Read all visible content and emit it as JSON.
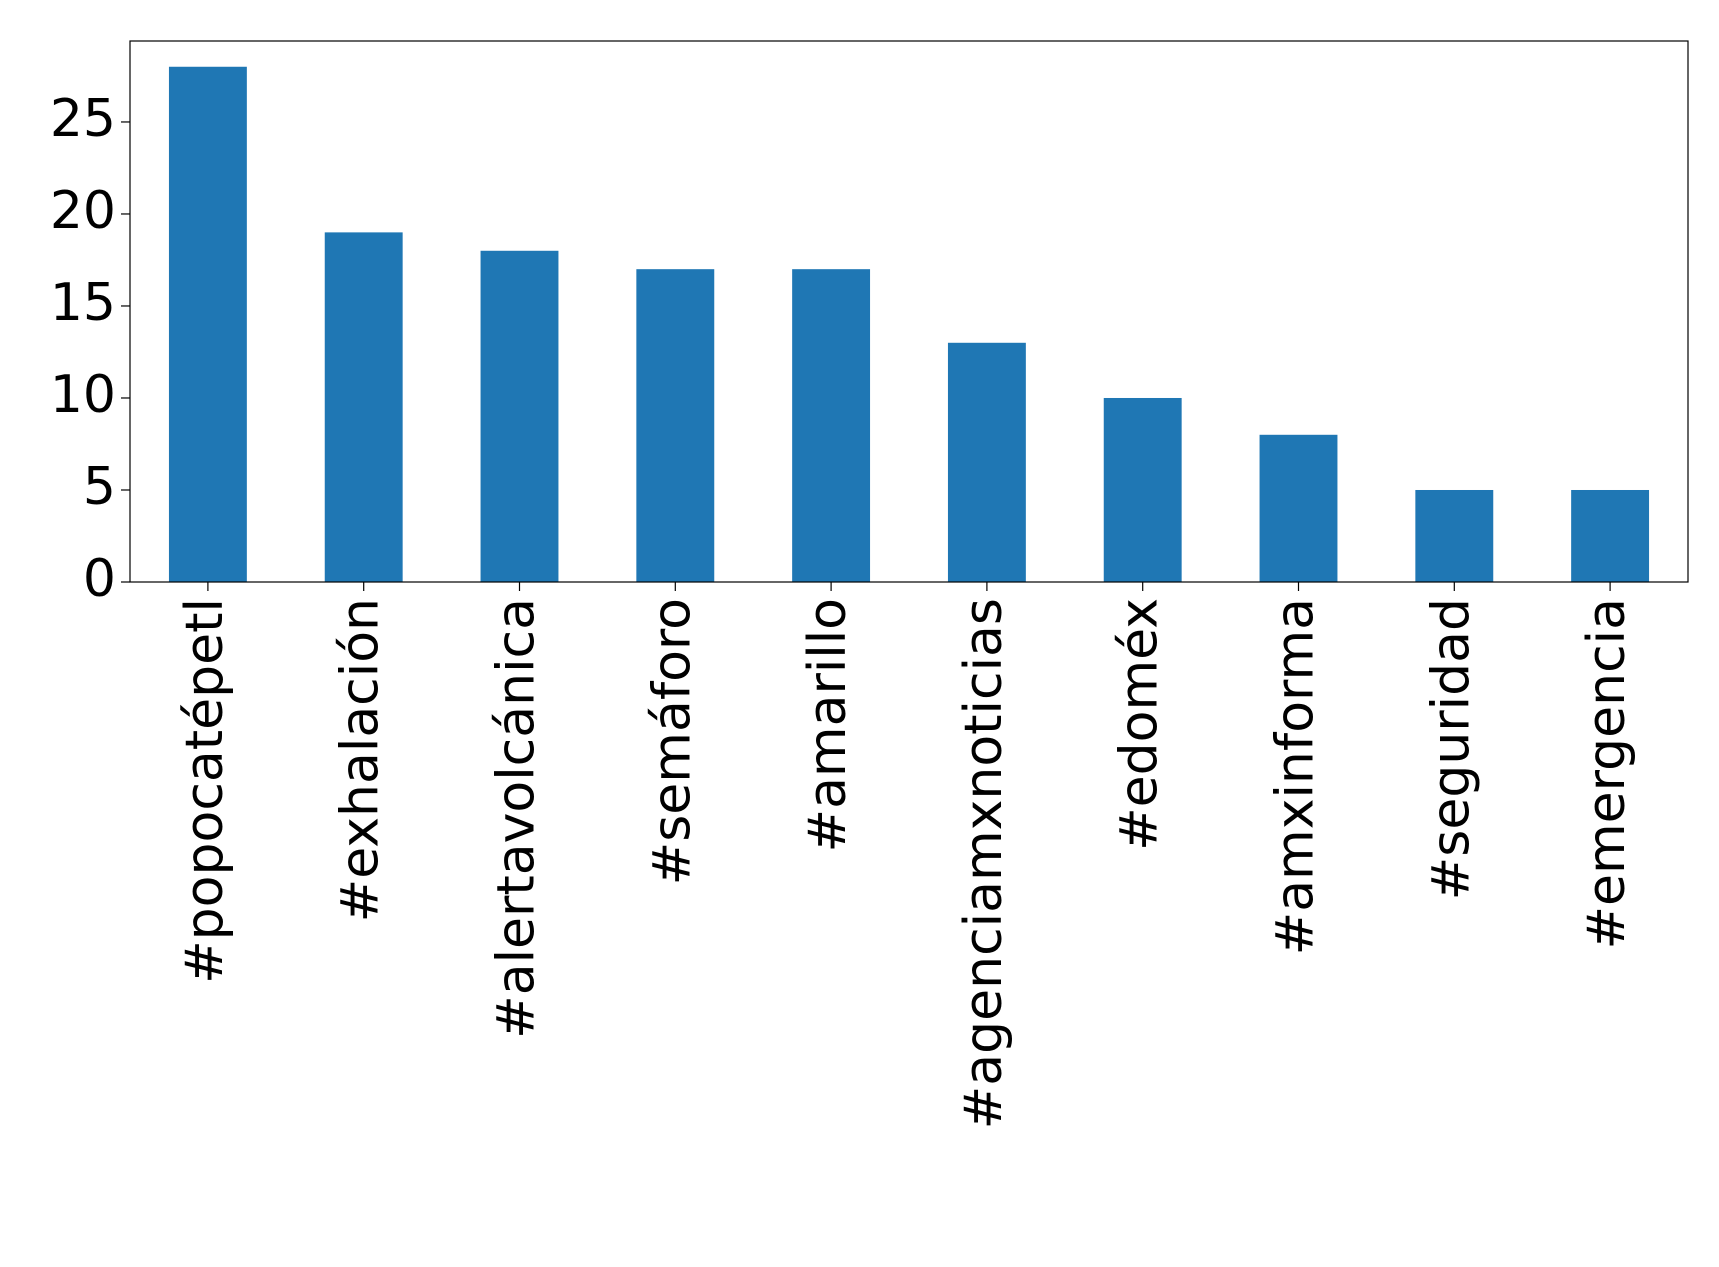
{
  "chart_data": {
    "type": "bar",
    "categories": [
      "#popocatépetl",
      "#exhalación",
      "#alertavolcánica",
      "#semáforo",
      "#amarillo",
      "#agenciamxnoticias",
      "#edoméx",
      "#amxinforma",
      "#seguridad",
      "#emergencia"
    ],
    "values": [
      28,
      19,
      18,
      17,
      17,
      13,
      10,
      8,
      5,
      5
    ],
    "color": "#1f77b4",
    "ylim": [
      0,
      29.4
    ],
    "yticks": [
      0,
      5,
      10,
      15,
      20,
      25
    ],
    "grid": false
  }
}
